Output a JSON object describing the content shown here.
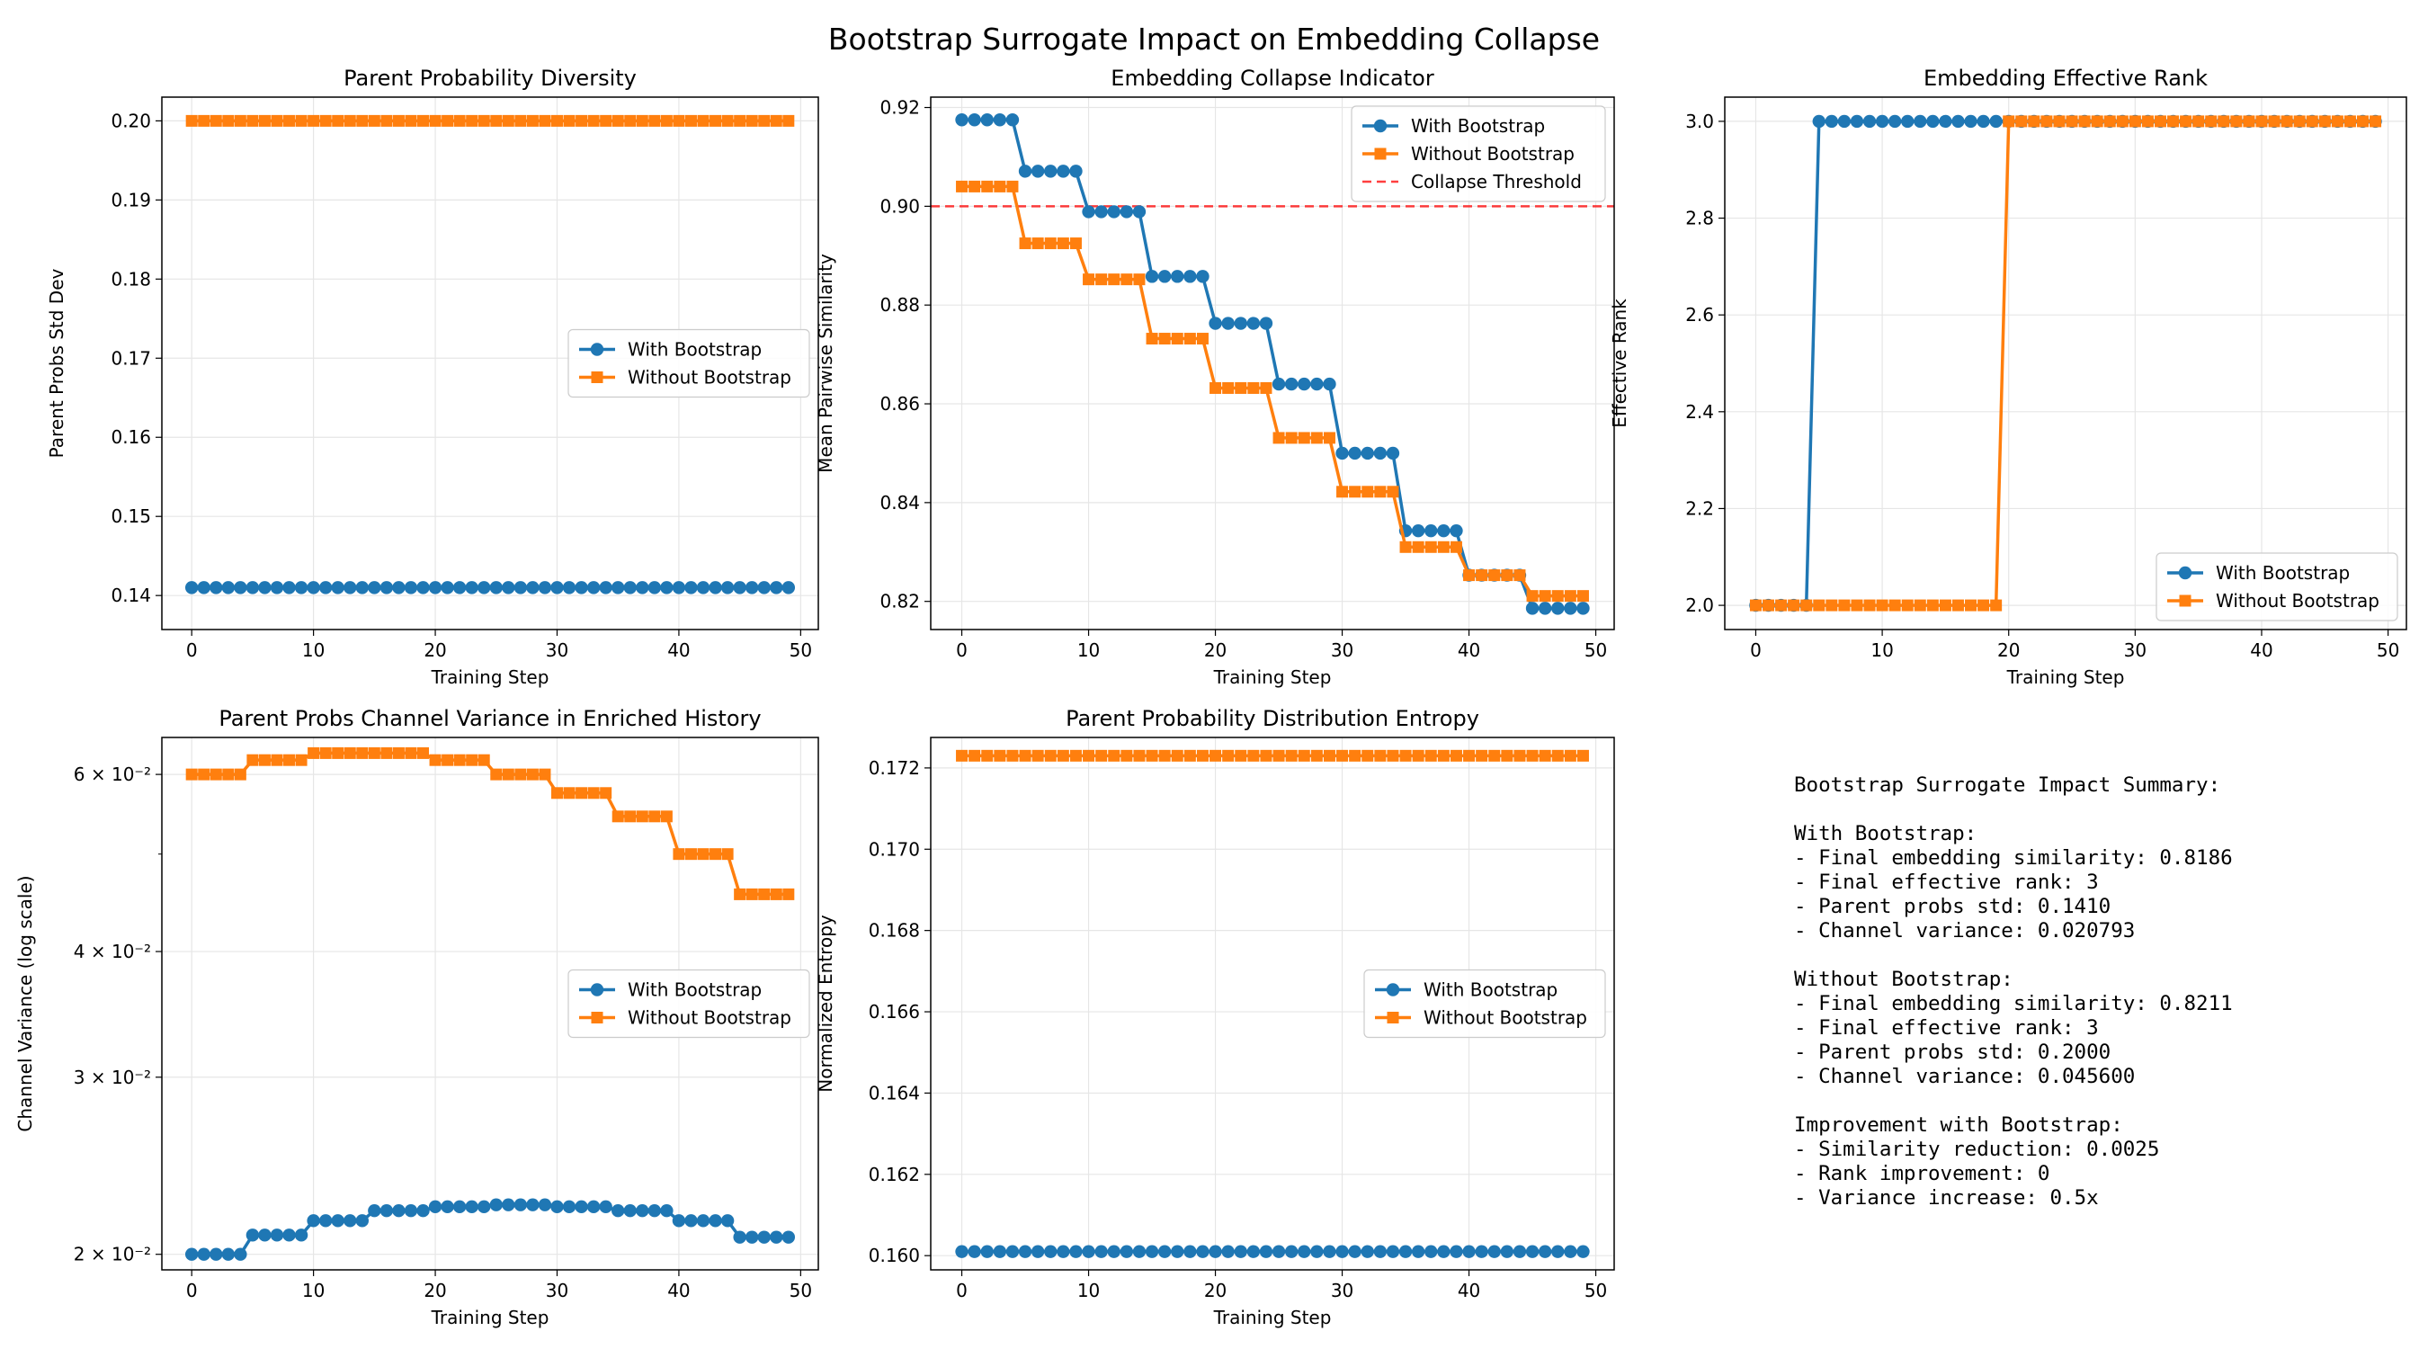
{
  "figure_title": "Bootstrap Surrogate Impact on Embedding Collapse",
  "colors": {
    "with": "#1f77b4",
    "without": "#ff7f0e",
    "threshold": "#ff0000",
    "grid": "#e6e6e6"
  },
  "chart_data": [
    {
      "id": "p1",
      "type": "line",
      "title": "Parent Probability Diversity",
      "xlabel": "Training Step",
      "ylabel": "Parent Probs Std Dev",
      "xlim": [
        -2.45,
        51.45
      ],
      "ylim": [
        0.1357,
        0.203
      ],
      "xticks": [
        0,
        10,
        20,
        30,
        40,
        50
      ],
      "xticklabels": [
        "0",
        "10",
        "20",
        "30",
        "40",
        "50"
      ],
      "yticks": [
        0.14,
        0.15,
        0.16,
        0.17,
        0.18,
        0.19,
        0.2
      ],
      "yticklabels": [
        "0.14",
        "0.15",
        "0.16",
        "0.17",
        "0.18",
        "0.19",
        "0.20"
      ],
      "legend": {
        "loc": "center-right",
        "entries": [
          "With Bootstrap",
          "Without Bootstrap"
        ]
      },
      "x": [
        0,
        1,
        2,
        3,
        4,
        5,
        6,
        7,
        8,
        9,
        10,
        11,
        12,
        13,
        14,
        15,
        16,
        17,
        18,
        19,
        20,
        21,
        22,
        23,
        24,
        25,
        26,
        27,
        28,
        29,
        30,
        31,
        32,
        33,
        34,
        35,
        36,
        37,
        38,
        39,
        40,
        41,
        42,
        43,
        44,
        45,
        46,
        47,
        48,
        49
      ],
      "series": [
        {
          "name": "With Bootstrap",
          "marker": "o",
          "values": [
            0.141,
            0.141,
            0.141,
            0.141,
            0.141,
            0.141,
            0.141,
            0.141,
            0.141,
            0.141,
            0.141,
            0.141,
            0.141,
            0.141,
            0.141,
            0.141,
            0.141,
            0.141,
            0.141,
            0.141,
            0.141,
            0.141,
            0.141,
            0.141,
            0.141,
            0.141,
            0.141,
            0.141,
            0.141,
            0.141,
            0.141,
            0.141,
            0.141,
            0.141,
            0.141,
            0.141,
            0.141,
            0.141,
            0.141,
            0.141,
            0.141,
            0.141,
            0.141,
            0.141,
            0.141,
            0.141,
            0.141,
            0.141,
            0.141,
            0.141
          ]
        },
        {
          "name": "Without Bootstrap",
          "marker": "s",
          "values": [
            0.2,
            0.2,
            0.2,
            0.2,
            0.2,
            0.2,
            0.2,
            0.2,
            0.2,
            0.2,
            0.2,
            0.2,
            0.2,
            0.2,
            0.2,
            0.2,
            0.2,
            0.2,
            0.2,
            0.2,
            0.2,
            0.2,
            0.2,
            0.2,
            0.2,
            0.2,
            0.2,
            0.2,
            0.2,
            0.2,
            0.2,
            0.2,
            0.2,
            0.2,
            0.2,
            0.2,
            0.2,
            0.2,
            0.2,
            0.2,
            0.2,
            0.2,
            0.2,
            0.2,
            0.2,
            0.2,
            0.2,
            0.2,
            0.2,
            0.2
          ]
        }
      ]
    },
    {
      "id": "p2",
      "type": "line",
      "title": "Embedding Collapse Indicator",
      "xlabel": "Training Step",
      "ylabel": "Mean Pairwise Similarity",
      "xlim": [
        -2.45,
        51.45
      ],
      "ylim": [
        0.8143,
        0.9221
      ],
      "xticks": [
        0,
        10,
        20,
        30,
        40,
        50
      ],
      "xticklabels": [
        "0",
        "10",
        "20",
        "30",
        "40",
        "50"
      ],
      "yticks": [
        0.82,
        0.84,
        0.86,
        0.88,
        0.9,
        0.92
      ],
      "yticklabels": [
        "0.82",
        "0.84",
        "0.86",
        "0.88",
        "0.90",
        "0.92"
      ],
      "hline": {
        "y": 0.9,
        "label": "Collapse Threshold"
      },
      "legend": {
        "loc": "top-right",
        "entries": [
          "With Bootstrap",
          "Without Bootstrap",
          "Collapse Threshold"
        ]
      },
      "x": [
        0,
        1,
        2,
        3,
        4,
        5,
        6,
        7,
        8,
        9,
        10,
        11,
        12,
        13,
        14,
        15,
        16,
        17,
        18,
        19,
        20,
        21,
        22,
        23,
        24,
        25,
        26,
        27,
        28,
        29,
        30,
        31,
        32,
        33,
        34,
        35,
        36,
        37,
        38,
        39,
        40,
        41,
        42,
        43,
        44,
        45,
        46,
        47,
        48,
        49
      ],
      "series": [
        {
          "name": "With Bootstrap",
          "marker": "o",
          "values": [
            0.9175,
            0.9175,
            0.9175,
            0.9175,
            0.9175,
            0.9071,
            0.9071,
            0.9071,
            0.9071,
            0.9071,
            0.8989,
            0.8989,
            0.8989,
            0.8989,
            0.8989,
            0.8858,
            0.8858,
            0.8858,
            0.8858,
            0.8858,
            0.8763,
            0.8763,
            0.8763,
            0.8763,
            0.8763,
            0.864,
            0.864,
            0.864,
            0.864,
            0.864,
            0.85,
            0.85,
            0.85,
            0.85,
            0.85,
            0.8343,
            0.8343,
            0.8343,
            0.8343,
            0.8343,
            0.8253,
            0.8253,
            0.8253,
            0.8253,
            0.8253,
            0.8186,
            0.8186,
            0.8186,
            0.8186,
            0.8186
          ]
        },
        {
          "name": "Without Bootstrap",
          "marker": "s",
          "values": [
            0.904,
            0.904,
            0.904,
            0.904,
            0.904,
            0.8925,
            0.8925,
            0.8925,
            0.8925,
            0.8925,
            0.8852,
            0.8852,
            0.8852,
            0.8852,
            0.8852,
            0.8732,
            0.8732,
            0.8732,
            0.8732,
            0.8732,
            0.8632,
            0.8632,
            0.8632,
            0.8632,
            0.8632,
            0.8531,
            0.8531,
            0.8531,
            0.8531,
            0.8531,
            0.8422,
            0.8422,
            0.8422,
            0.8422,
            0.8422,
            0.831,
            0.831,
            0.831,
            0.831,
            0.831,
            0.8253,
            0.8253,
            0.8253,
            0.8253,
            0.8253,
            0.8211,
            0.8211,
            0.8211,
            0.8211,
            0.8211
          ]
        }
      ]
    },
    {
      "id": "p3",
      "type": "line",
      "title": "Embedding Effective Rank",
      "xlabel": "Training Step",
      "ylabel": "Effective Rank",
      "xlim": [
        -2.45,
        51.45
      ],
      "ylim": [
        1.95,
        3.05
      ],
      "xticks": [
        0,
        10,
        20,
        30,
        40,
        50
      ],
      "xticklabels": [
        "0",
        "10",
        "20",
        "30",
        "40",
        "50"
      ],
      "yticks": [
        2.0,
        2.2,
        2.4,
        2.6,
        2.8,
        3.0
      ],
      "yticklabels": [
        "2.0",
        "2.2",
        "2.4",
        "2.6",
        "2.8",
        "3.0"
      ],
      "legend": {
        "loc": "lower-right",
        "entries": [
          "With Bootstrap",
          "Without Bootstrap"
        ]
      },
      "x": [
        0,
        1,
        2,
        3,
        4,
        5,
        6,
        7,
        8,
        9,
        10,
        11,
        12,
        13,
        14,
        15,
        16,
        17,
        18,
        19,
        20,
        21,
        22,
        23,
        24,
        25,
        26,
        27,
        28,
        29,
        30,
        31,
        32,
        33,
        34,
        35,
        36,
        37,
        38,
        39,
        40,
        41,
        42,
        43,
        44,
        45,
        46,
        47,
        48,
        49
      ],
      "series": [
        {
          "name": "With Bootstrap",
          "marker": "o",
          "values": [
            2,
            2,
            2,
            2,
            2,
            3,
            3,
            3,
            3,
            3,
            3,
            3,
            3,
            3,
            3,
            3,
            3,
            3,
            3,
            3,
            3,
            3,
            3,
            3,
            3,
            3,
            3,
            3,
            3,
            3,
            3,
            3,
            3,
            3,
            3,
            3,
            3,
            3,
            3,
            3,
            3,
            3,
            3,
            3,
            3,
            3,
            3,
            3,
            3,
            3
          ]
        },
        {
          "name": "Without Bootstrap",
          "marker": "s",
          "values": [
            2,
            2,
            2,
            2,
            2,
            2,
            2,
            2,
            2,
            2,
            2,
            2,
            2,
            2,
            2,
            2,
            2,
            2,
            2,
            2,
            3,
            3,
            3,
            3,
            3,
            3,
            3,
            3,
            3,
            3,
            3,
            3,
            3,
            3,
            3,
            3,
            3,
            3,
            3,
            3,
            3,
            3,
            3,
            3,
            3,
            3,
            3,
            3,
            3,
            3
          ]
        }
      ]
    },
    {
      "id": "p4",
      "type": "line",
      "yscale": "log",
      "title": "Parent Probs Channel Variance in Enriched History",
      "xlabel": "Training Step",
      "ylabel": "Channel Variance (log scale)",
      "xlim": [
        -2.45,
        51.45
      ],
      "ylim": [
        0.0193,
        0.0653
      ],
      "xticks": [
        0,
        10,
        20,
        30,
        40,
        50
      ],
      "xticklabels": [
        "0",
        "10",
        "20",
        "30",
        "40",
        "50"
      ],
      "yticks": [
        0.02,
        0.03,
        0.04,
        0.06
      ],
      "yticklabels": [
        "2 × 10⁻²",
        "3 × 10⁻²",
        "4 × 10⁻²",
        "6 × 10⁻²"
      ],
      "minor_yticks": [
        0.05
      ],
      "legend": {
        "loc": "center-right",
        "entries": [
          "With Bootstrap",
          "Without Bootstrap"
        ]
      },
      "x": [
        0,
        1,
        2,
        3,
        4,
        5,
        6,
        7,
        8,
        9,
        10,
        11,
        12,
        13,
        14,
        15,
        16,
        17,
        18,
        19,
        20,
        21,
        22,
        23,
        24,
        25,
        26,
        27,
        28,
        29,
        30,
        31,
        32,
        33,
        34,
        35,
        36,
        37,
        38,
        39,
        40,
        41,
        42,
        43,
        44,
        45,
        46,
        47,
        48,
        49
      ],
      "series": [
        {
          "name": "With Bootstrap",
          "marker": "o",
          "values": [
            0.02,
            0.02,
            0.02,
            0.02,
            0.02,
            0.0209,
            0.0209,
            0.0209,
            0.0209,
            0.0209,
            0.0216,
            0.0216,
            0.0216,
            0.0216,
            0.0216,
            0.0221,
            0.0221,
            0.0221,
            0.0221,
            0.0221,
            0.0223,
            0.0223,
            0.0223,
            0.0223,
            0.0223,
            0.0224,
            0.0224,
            0.0224,
            0.0224,
            0.0224,
            0.0223,
            0.0223,
            0.0223,
            0.0223,
            0.0223,
            0.0221,
            0.0221,
            0.0221,
            0.0221,
            0.0221,
            0.0216,
            0.0216,
            0.0216,
            0.0216,
            0.0216,
            0.0208,
            0.0208,
            0.0208,
            0.0208,
            0.0208
          ]
        },
        {
          "name": "Without Bootstrap",
          "marker": "s",
          "values": [
            0.06,
            0.06,
            0.06,
            0.06,
            0.06,
            0.062,
            0.062,
            0.062,
            0.062,
            0.062,
            0.063,
            0.063,
            0.063,
            0.063,
            0.063,
            0.063,
            0.063,
            0.063,
            0.063,
            0.063,
            0.062,
            0.062,
            0.062,
            0.062,
            0.062,
            0.06,
            0.06,
            0.06,
            0.06,
            0.06,
            0.0575,
            0.0575,
            0.0575,
            0.0575,
            0.0575,
            0.0545,
            0.0545,
            0.0545,
            0.0545,
            0.0545,
            0.05,
            0.05,
            0.05,
            0.05,
            0.05,
            0.0456,
            0.0456,
            0.0456,
            0.0456,
            0.0456
          ]
        }
      ]
    },
    {
      "id": "p5",
      "type": "line",
      "title": "Parent Probability Distribution Entropy",
      "xlabel": "Training Step",
      "ylabel": "Normalized Entropy",
      "xlim": [
        -2.45,
        51.45
      ],
      "ylim": [
        0.15965,
        0.17275
      ],
      "xticks": [
        0,
        10,
        20,
        30,
        40,
        50
      ],
      "xticklabels": [
        "0",
        "10",
        "20",
        "30",
        "40",
        "50"
      ],
      "yticks": [
        0.16,
        0.162,
        0.164,
        0.166,
        0.168,
        0.17,
        0.172
      ],
      "yticklabels": [
        "0.160",
        "0.162",
        "0.164",
        "0.166",
        "0.168",
        "0.170",
        "0.172"
      ],
      "legend": {
        "loc": "center-right",
        "entries": [
          "With Bootstrap",
          "Without Bootstrap"
        ]
      },
      "x": [
        0,
        1,
        2,
        3,
        4,
        5,
        6,
        7,
        8,
        9,
        10,
        11,
        12,
        13,
        14,
        15,
        16,
        17,
        18,
        19,
        20,
        21,
        22,
        23,
        24,
        25,
        26,
        27,
        28,
        29,
        30,
        31,
        32,
        33,
        34,
        35,
        36,
        37,
        38,
        39,
        40,
        41,
        42,
        43,
        44,
        45,
        46,
        47,
        48,
        49
      ],
      "series": [
        {
          "name": "With Bootstrap",
          "marker": "o",
          "values": [
            0.1601,
            0.1601,
            0.1601,
            0.1601,
            0.1601,
            0.1601,
            0.1601,
            0.1601,
            0.1601,
            0.1601,
            0.1601,
            0.1601,
            0.1601,
            0.1601,
            0.1601,
            0.1601,
            0.1601,
            0.1601,
            0.1601,
            0.1601,
            0.1601,
            0.1601,
            0.1601,
            0.1601,
            0.1601,
            0.1601,
            0.1601,
            0.1601,
            0.1601,
            0.1601,
            0.1601,
            0.1601,
            0.1601,
            0.1601,
            0.1601,
            0.1601,
            0.1601,
            0.1601,
            0.1601,
            0.1601,
            0.1601,
            0.1601,
            0.1601,
            0.1601,
            0.1601,
            0.1601,
            0.1601,
            0.1601,
            0.1601,
            0.1601
          ]
        },
        {
          "name": "Without Bootstrap",
          "marker": "s",
          "values": [
            0.1723,
            0.1723,
            0.1723,
            0.1723,
            0.1723,
            0.1723,
            0.1723,
            0.1723,
            0.1723,
            0.1723,
            0.1723,
            0.1723,
            0.1723,
            0.1723,
            0.1723,
            0.1723,
            0.1723,
            0.1723,
            0.1723,
            0.1723,
            0.1723,
            0.1723,
            0.1723,
            0.1723,
            0.1723,
            0.1723,
            0.1723,
            0.1723,
            0.1723,
            0.1723,
            0.1723,
            0.1723,
            0.1723,
            0.1723,
            0.1723,
            0.1723,
            0.1723,
            0.1723,
            0.1723,
            0.1723,
            0.1723,
            0.1723,
            0.1723,
            0.1723,
            0.1723,
            0.1723,
            0.1723,
            0.1723,
            0.1723,
            0.1723
          ]
        }
      ]
    }
  ],
  "summary": {
    "lines": [
      "Bootstrap Surrogate Impact Summary:",
      "",
      "With Bootstrap:",
      "- Final embedding similarity: 0.8186",
      "- Final effective rank: 3",
      "- Parent probs std: 0.1410",
      "- Channel variance: 0.020793",
      "",
      "Without Bootstrap:",
      "- Final embedding similarity: 0.8211",
      "- Final effective rank: 3",
      "- Parent probs std: 0.2000",
      "- Channel variance: 0.045600",
      "",
      "Improvement with Bootstrap:",
      "- Similarity reduction: 0.0025",
      "- Rank improvement: 0",
      "- Variance increase: 0.5x"
    ]
  }
}
